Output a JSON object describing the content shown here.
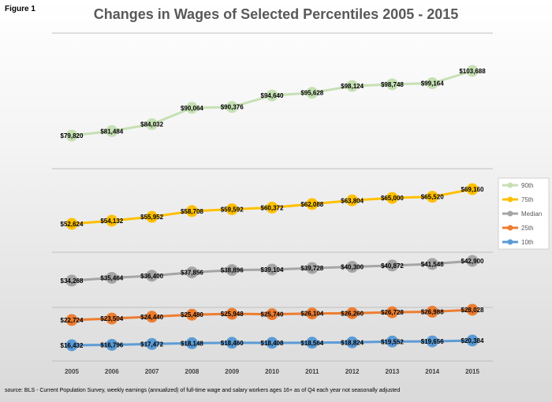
{
  "figure_label": "Figure 1",
  "source_note": "source: BLS - Current Population Survey, weekly earnings (annualized) of  full-time wage and salary workers ages 16+ as of Q4 each year not seasonally adjusted",
  "chart_data": {
    "type": "line",
    "title": "Changes in Wages of Selected Percentiles 2005 - 2015",
    "xlabel": "",
    "ylabel": "",
    "grid": true,
    "legend_position": "right",
    "categories": [
      "2005",
      "2006",
      "2007",
      "2008",
      "2009",
      "2010",
      "2011",
      "2012",
      "2013",
      "2014",
      "2015"
    ],
    "series": [
      {
        "name": "90th",
        "color": "#c6e0b4",
        "values": [
          79820,
          81484,
          84032,
          90064,
          90376,
          94640,
          95628,
          98124,
          98748,
          99164,
          103688
        ],
        "labels": [
          "$79,820",
          "$81,484",
          "$84,032",
          "$90,064",
          "$90,376",
          "$94,640",
          "$95,628",
          "$98,124",
          "$98,748",
          "$99,164",
          "$103,688"
        ]
      },
      {
        "name": "75th",
        "color": "#ffc000",
        "values": [
          52624,
          54132,
          55952,
          58708,
          59592,
          60372,
          62088,
          63804,
          65000,
          65520,
          69160
        ],
        "labels": [
          "$52,624",
          "$54,132",
          "$55,952",
          "$58,708",
          "$59,592",
          "$60,372",
          "$62,088",
          "$63,804",
          "$65,000",
          "$65,520",
          "$69,160"
        ]
      },
      {
        "name": "Median",
        "color": "#a5a5a5",
        "values": [
          34268,
          35464,
          36400,
          37856,
          38896,
          39104,
          39728,
          40300,
          40872,
          41548,
          42900
        ],
        "labels": [
          "$34,268",
          "$35,464",
          "$36,400",
          "$37,856",
          "$38,896",
          "$39,104",
          "$39,728",
          "$40,300",
          "$40,872",
          "$41,548",
          "$42,900"
        ]
      },
      {
        "name": "25th",
        "color": "#ed7d31",
        "values": [
          22724,
          23504,
          24440,
          25480,
          25948,
          25740,
          26104,
          26260,
          26728,
          26988,
          28028
        ],
        "labels": [
          "$22,724",
          "$23,504",
          "$24,440",
          "$25,480",
          "$25,948",
          "$25,740",
          "$26,104",
          "$26,260",
          "$26,728",
          "$26,988",
          "$28,028"
        ]
      },
      {
        "name": "10th",
        "color": "#5b9bd5",
        "values": [
          16432,
          16796,
          17472,
          18148,
          18460,
          18408,
          18564,
          18824,
          19552,
          19656,
          20384
        ],
        "labels": [
          "$16,432",
          "$16,796",
          "$17,472",
          "$18,148",
          "$18,460",
          "$18,408",
          "$18,564",
          "$18,824",
          "$19,552",
          "$19,656",
          "$20,384"
        ]
      }
    ]
  }
}
